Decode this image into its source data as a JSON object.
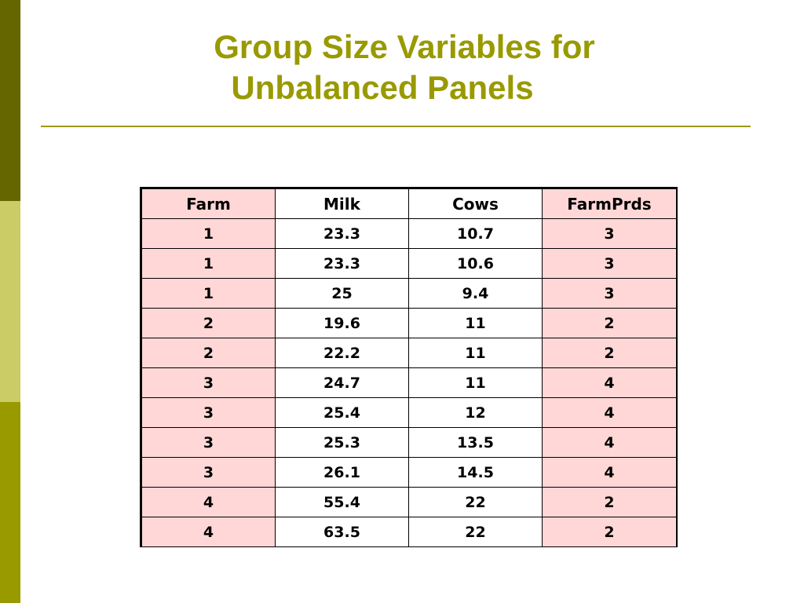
{
  "slide": {
    "title_line1": "Group Size Variables for",
    "title_line2": "Unbalanced Panels"
  },
  "colors": {
    "accent": "#999900",
    "bar_dark": "#666600",
    "bar_light": "#cccc66",
    "highlight_column": "#ffd7d7"
  },
  "table": {
    "headers": [
      "Farm",
      "Milk",
      "Cows",
      "FarmPrds"
    ],
    "rows": [
      [
        "1",
        "23.3",
        "10.7",
        "3"
      ],
      [
        "1",
        "23.3",
        "10.6",
        "3"
      ],
      [
        "1",
        "25",
        "9.4",
        "3"
      ],
      [
        "2",
        "19.6",
        "11",
        "2"
      ],
      [
        "2",
        "22.2",
        "11",
        "2"
      ],
      [
        "3",
        "24.7",
        "11",
        "4"
      ],
      [
        "3",
        "25.4",
        "12",
        "4"
      ],
      [
        "3",
        "25.3",
        "13.5",
        "4"
      ],
      [
        "3",
        "26.1",
        "14.5",
        "4"
      ],
      [
        "4",
        "55.4",
        "22",
        "2"
      ],
      [
        "4",
        "63.5",
        "22",
        "2"
      ]
    ]
  }
}
